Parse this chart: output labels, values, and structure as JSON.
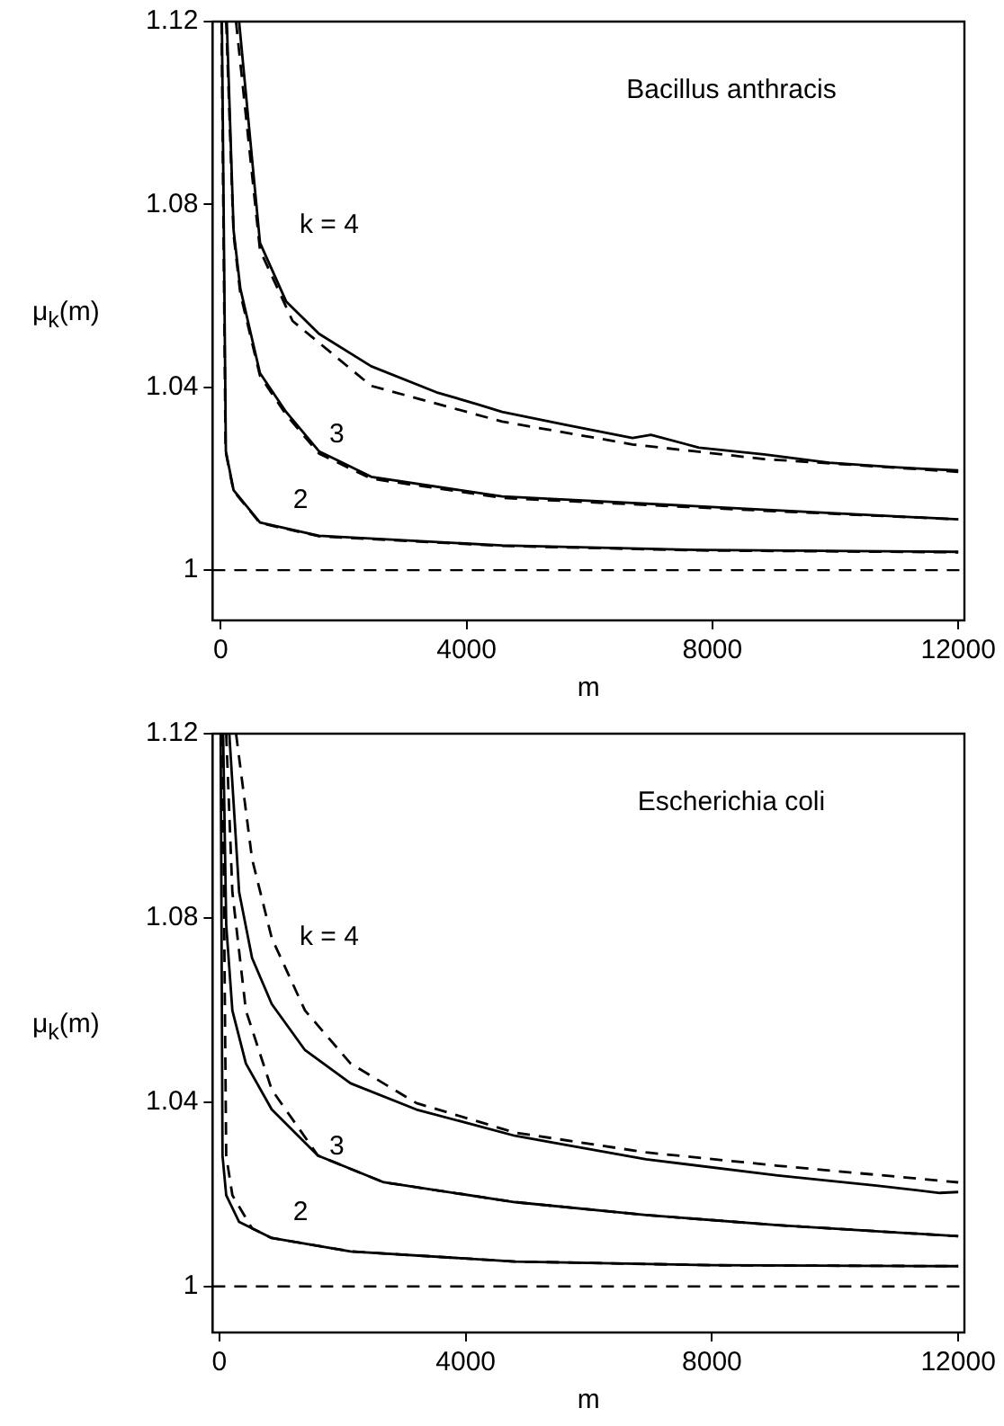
{
  "chart_data": [
    {
      "type": "line",
      "xlabel": "m",
      "ylabel": "μ$_{k}$(m)",
      "xlim": [
        -130,
        12100
      ],
      "ylim": [
        0.989,
        1.12
      ],
      "xticks": [
        0,
        4000,
        8000,
        12000
      ],
      "yticks": [
        1,
        1.04,
        1.08,
        1.12
      ],
      "grid": false,
      "legend": false,
      "annotations": [
        "Bacillus anthracis",
        "k = 4",
        "3",
        "2"
      ],
      "ref_lines": [
        {
          "axis": "y",
          "value": 1,
          "line_style": "dashed",
          "color": "#000000"
        }
      ],
      "series": [
        {
          "color": "#000000",
          "line_style": "solid",
          "x": [
            300,
            640,
            1065,
            1600,
            2450,
            3510,
            4200,
            4580,
            5640,
            6700,
            7000,
            7780,
            8840,
            9900,
            10960,
            12000
          ],
          "values": [
            1.12,
            1.0716,
            1.0588,
            1.0517,
            1.0446,
            1.0389,
            1.0362,
            1.0346,
            1.0317,
            1.0289,
            1.0296,
            1.0268,
            1.0253,
            1.0235,
            1.0225,
            1.0218
          ]
        },
        {
          "color": "#000000",
          "line_style": "dashed",
          "x": [
            250,
            640,
            1170,
            2450,
            4580,
            6700,
            8840,
            12000
          ],
          "values": [
            1.12,
            1.07,
            1.0545,
            1.0403,
            1.0325,
            1.0275,
            1.0243,
            1.0215
          ]
        },
        {
          "color": "#000000",
          "line_style": "solid",
          "x": [
            100,
            210,
            320,
            640,
            1065,
            1600,
            2450,
            4580,
            6700,
            8840,
            12000
          ],
          "values": [
            1.12,
            1.0744,
            1.0616,
            1.0431,
            1.0346,
            1.026,
            1.0204,
            1.0161,
            1.0147,
            1.0132,
            1.0111
          ]
        },
        {
          "color": "#000000",
          "line_style": "dashed",
          "x": [
            90,
            210,
            320,
            640,
            1065,
            1600,
            2450,
            4580,
            6700,
            8840,
            12000
          ],
          "values": [
            1.12,
            1.0735,
            1.0605,
            1.0425,
            1.034,
            1.0255,
            1.02,
            1.0158,
            1.0144,
            1.013,
            1.0111
          ]
        },
        {
          "color": "#000000",
          "line_style": "solid",
          "x": [
            20,
            85,
            210,
            640,
            1600,
            4580,
            7780,
            12000
          ],
          "values": [
            1.12,
            1.026,
            1.0175,
            1.0104,
            1.0075,
            1.0054,
            1.0044,
            1.004
          ]
        },
        {
          "color": "#000000",
          "line_style": "dashed",
          "x": [
            15,
            80,
            210,
            640,
            1600,
            4580,
            7780,
            12000
          ],
          "values": [
            1.12,
            1.026,
            1.0173,
            1.0103,
            1.0074,
            1.0053,
            1.0043,
            1.0039
          ]
        }
      ]
    },
    {
      "type": "line",
      "xlabel": "m",
      "ylabel": "μ$_{k}$(m)",
      "xlim": [
        -110,
        12100
      ],
      "ylim": [
        0.99,
        1.12
      ],
      "xticks": [
        0,
        4000,
        8000,
        12000
      ],
      "yticks": [
        1,
        1.04,
        1.08,
        1.12
      ],
      "grid": false,
      "legend": false,
      "annotations": [
        "Escherichia coli",
        "k = 4",
        "3",
        "2"
      ],
      "ref_lines": [
        {
          "axis": "y",
          "value": 1,
          "line_style": "dashed",
          "color": "#000000"
        }
      ],
      "series": [
        {
          "color": "#000000",
          "line_style": "solid",
          "x": [
            160,
            320,
            530,
            850,
            1390,
            2130,
            3200,
            4800,
            6930,
            9070,
            10670,
            11700,
            12000
          ],
          "values": [
            1.12,
            1.0856,
            1.0713,
            1.0613,
            1.0513,
            1.0441,
            1.0384,
            1.0327,
            1.0276,
            1.0241,
            1.0219,
            1.0203,
            1.0205
          ]
        },
        {
          "color": "#000000",
          "line_style": "dashed",
          "x": [
            270,
            530,
            850,
            1390,
            2130,
            3200,
            4800,
            6930,
            9070,
            12000
          ],
          "values": [
            1.12,
            1.0928,
            1.0756,
            1.0599,
            1.0484,
            1.0398,
            1.0334,
            1.0291,
            1.0262,
            1.0226
          ]
        },
        {
          "color": "#000000",
          "line_style": "solid",
          "x": [
            60,
            110,
            210,
            430,
            850,
            1600,
            2670,
            4800,
            6930,
            9070,
            12000
          ],
          "values": [
            1.12,
            1.0785,
            1.0599,
            1.0484,
            1.0384,
            1.0284,
            1.0226,
            1.0183,
            1.0155,
            1.0133,
            1.0109
          ]
        },
        {
          "color": "#000000",
          "line_style": "dashed",
          "x": [
            110,
            210,
            430,
            850,
            1600,
            2670,
            4800,
            6930,
            9070,
            12000
          ],
          "values": [
            1.12,
            1.0856,
            1.0599,
            1.0427,
            1.0284,
            1.0226,
            1.0183,
            1.0155,
            1.0133,
            1.0109
          ]
        },
        {
          "color": "#000000",
          "line_style": "solid",
          "x": [
            20,
            50,
            110,
            320,
            850,
            2130,
            4800,
            8000,
            12000
          ],
          "values": [
            1.12,
            1.0284,
            1.0198,
            1.014,
            1.0105,
            1.0076,
            1.0054,
            1.0046,
            1.0044
          ]
        },
        {
          "color": "#000000",
          "line_style": "dashed",
          "x": [
            50,
            110,
            210,
            530,
            850,
            2130,
            4800,
            8000,
            12000
          ],
          "values": [
            1.12,
            1.0284,
            1.0198,
            1.0126,
            1.0105,
            1.0076,
            1.0054,
            1.0046,
            1.0044
          ]
        }
      ]
    }
  ]
}
